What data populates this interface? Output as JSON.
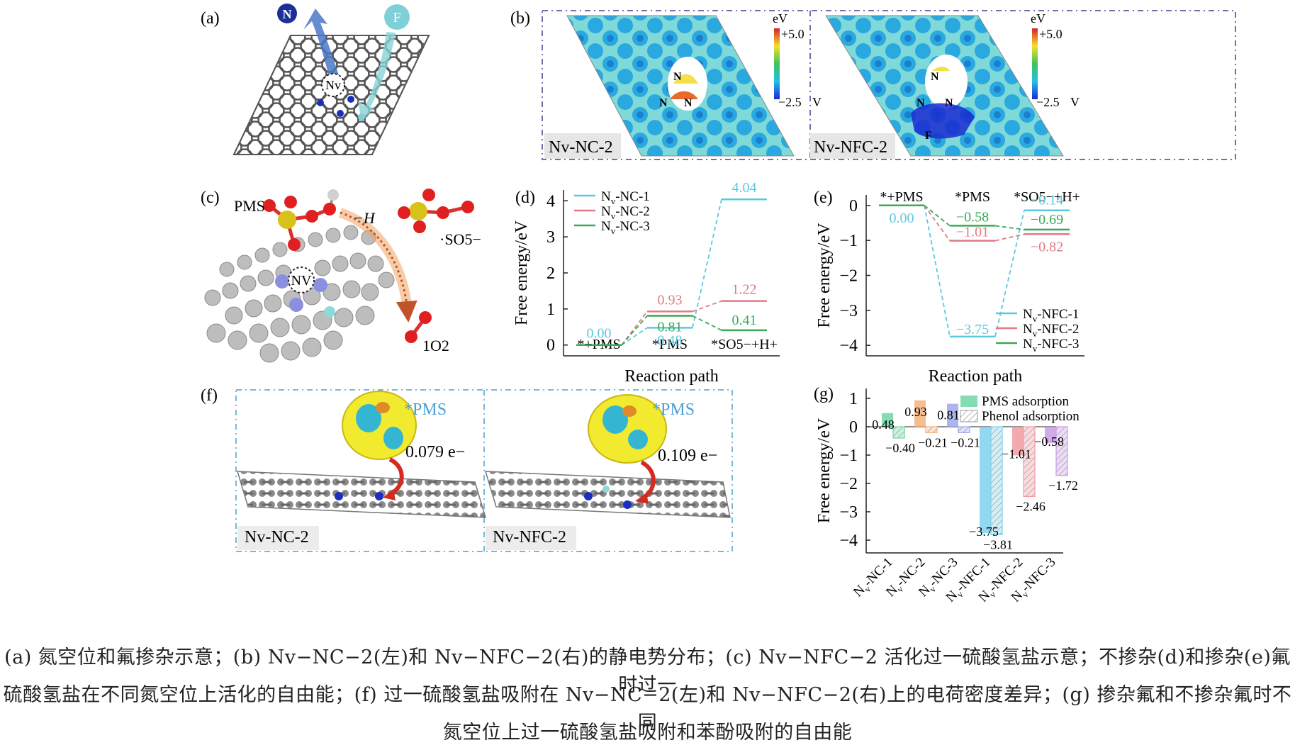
{
  "panel_labels": {
    "a": "(a)",
    "b": "(b)",
    "c": "(c)",
    "d": "(d)",
    "e": "(e)",
    "f": "(f)",
    "g": "(g)"
  },
  "panel_a": {
    "n_ball": "N",
    "f_ball": "F",
    "vacancy": "Nv"
  },
  "panel_b": {
    "left": {
      "title": "Nv-NC-2",
      "units": "eV",
      "max": "+5.0",
      "min": "−2.5",
      "min_unit": "V",
      "atoms": [
        "N",
        "N",
        "N"
      ]
    },
    "right": {
      "title": "Nv-NFC-2",
      "units": "eV",
      "max": "+5.0",
      "min": "−2.5",
      "min_unit": "V",
      "atoms": [
        "N",
        "N",
        "N",
        "F"
      ]
    }
  },
  "panel_c": {
    "pms": "PMS",
    "minus_h": "−H",
    "so5": "·SO5−",
    "o2": "1O2",
    "vacancy": "NV"
  },
  "panel_f": {
    "left": {
      "adsorbate": "*PMS",
      "charge": "0.079 e−",
      "label": "Nv-NC-2"
    },
    "right": {
      "adsorbate": "*PMS",
      "charge": "0.109 e−",
      "label": "Nv-NFC-2"
    }
  },
  "chart_data": [
    {
      "type": "line",
      "panel": "d",
      "xlabel": "Reaction path",
      "ylabel": "Free energy/eV",
      "categories": [
        "*+PMS",
        "*PMS",
        "*SO5−+H+"
      ],
      "ylim": [
        -0.3,
        4.3
      ],
      "yticks": [
        0,
        1,
        2,
        3,
        4
      ],
      "legend": "top-left",
      "series": [
        {
          "name": "Nv-NC-1",
          "color": "#5bc8e0",
          "values": [
            0.0,
            0.48,
            4.04
          ]
        },
        {
          "name": "Nv-NC-2",
          "color": "#e07a86",
          "values": [
            0.0,
            0.93,
            1.22
          ]
        },
        {
          "name": "Nv-NC-3",
          "color": "#3aa856",
          "values": [
            0.0,
            0.81,
            0.41
          ]
        }
      ]
    },
    {
      "type": "line",
      "panel": "e",
      "xlabel": "Reaction path",
      "ylabel": "Free energy/eV",
      "categories": [
        "*+PMS",
        "*PMS",
        "*SO5−+H+"
      ],
      "ylim": [
        -4.3,
        0.3
      ],
      "yticks": [
        0,
        -1,
        -2,
        -3,
        -4
      ],
      "legend": "bottom-right",
      "series": [
        {
          "name": "Nv-NFC-1",
          "color": "#5bc8e0",
          "values": [
            0.0,
            -3.75,
            -0.14
          ]
        },
        {
          "name": "Nv-NFC-2",
          "color": "#e07a86",
          "values": [
            0.0,
            -1.01,
            -0.82
          ]
        },
        {
          "name": "Nv-NFC-3",
          "color": "#3aa856",
          "values": [
            0.0,
            -0.58,
            -0.69
          ]
        }
      ]
    },
    {
      "type": "bar",
      "panel": "g",
      "ylabel": "Free energy/eV",
      "categories": [
        "Nv-NC-1",
        "Nv-NC-2",
        "Nv-NC-3",
        "Nv-NFC-1",
        "Nv-NFC-2",
        "Nv-NFC-3"
      ],
      "ylim": [
        -4.45,
        1.35
      ],
      "yticks": [
        1,
        0,
        -1,
        -2,
        -3,
        -4
      ],
      "legend": "top-right",
      "bar_colors": [
        "#6fd6a4",
        "#f4b27a",
        "#9fa8ec",
        "#7fd1ef",
        "#f29aa2",
        "#c99be4"
      ],
      "series": [
        {
          "name": "PMS adsorption",
          "values": [
            0.48,
            0.93,
            0.81,
            -3.75,
            -1.01,
            -0.58
          ],
          "labels": [
            "0.48",
            "0.93",
            "0.81",
            "−3.75",
            "−1.01",
            "−0.58"
          ]
        },
        {
          "name": "Phenol adsorption",
          "values": [
            -0.4,
            -0.21,
            -0.21,
            -3.81,
            -2.46,
            -1.72
          ],
          "labels": [
            "−0.40",
            "−0.21",
            "−0.21",
            "−3.81",
            "−2.46",
            "−1.72"
          ]
        }
      ]
    }
  ],
  "caption": {
    "line1": "(a) 氮空位和氟掺杂示意；(b) Nv−NC−2(左)和 Nv−NFC−2(右)的静电势分布；(c) Nv−NFC−2 活化过一硫酸氢盐示意；不掺杂(d)和掺杂(e)氟时过一",
    "line2": "硫酸氢盐在不同氮空位上活化的自由能；(f) 过一硫酸氢盐吸附在 Nv−NC−2(左)和 Nv−NFC−2(右)上的电荷密度差异；(g) 掺杂氟和不掺杂氟时不同",
    "line3": "氮空位上过一硫酸氢盐吸附和苯酚吸附的自由能"
  }
}
